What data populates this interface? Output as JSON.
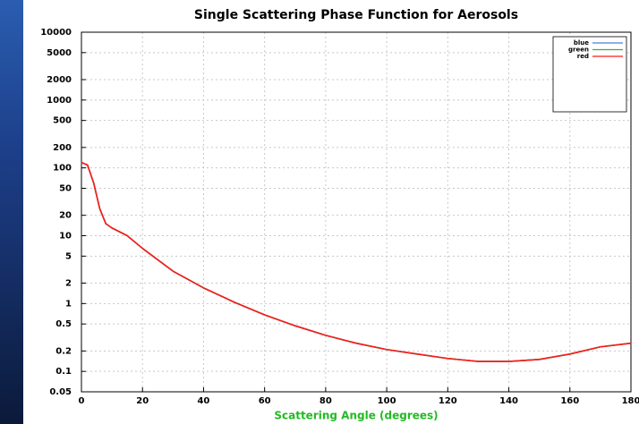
{
  "chart_data": {
    "type": "line",
    "title": "Single Scattering Phase Function for Aerosols",
    "x_label": "Scattering Angle (degrees)",
    "x": [
      0,
      2,
      4,
      6,
      8,
      10,
      15,
      20,
      30,
      40,
      50,
      60,
      70,
      80,
      90,
      100,
      110,
      120,
      130,
      140,
      150,
      160,
      170,
      180
    ],
    "series": [
      {
        "name": "blue",
        "color": "#4a7fd6",
        "values": [
          120,
          110,
          60,
          25,
          15,
          13,
          10,
          6.5,
          3,
          1.7,
          1.05,
          0.68,
          0.47,
          0.34,
          0.26,
          0.21,
          0.18,
          0.155,
          0.14,
          0.14,
          0.15,
          0.18,
          0.23,
          0.26
        ]
      },
      {
        "name": "green",
        "color": "#3cb043",
        "values": [
          120,
          110,
          60,
          25,
          15,
          13,
          10,
          6.5,
          3,
          1.7,
          1.05,
          0.68,
          0.47,
          0.34,
          0.26,
          0.21,
          0.18,
          0.155,
          0.14,
          0.14,
          0.15,
          0.18,
          0.23,
          0.26
        ]
      },
      {
        "name": "red",
        "color": "#ff1a1a",
        "values": [
          120,
          110,
          60,
          25,
          15,
          13,
          10,
          6.5,
          3,
          1.7,
          1.05,
          0.68,
          0.47,
          0.34,
          0.26,
          0.21,
          0.18,
          0.155,
          0.14,
          0.14,
          0.15,
          0.18,
          0.23,
          0.26
        ]
      }
    ],
    "xlim": [
      0,
      180
    ],
    "xticks": [
      0,
      20,
      40,
      60,
      80,
      100,
      120,
      140,
      160,
      180
    ],
    "ylim": [
      0.05,
      10000
    ],
    "yticks": [
      0.05,
      0.1,
      0.2,
      0.5,
      1,
      2,
      5,
      10,
      20,
      50,
      100,
      200,
      500,
      1000,
      2000,
      5000,
      10000
    ],
    "y_scale": "log",
    "grid": true,
    "legend": "upper right",
    "x_label_color": "#22bb22"
  }
}
